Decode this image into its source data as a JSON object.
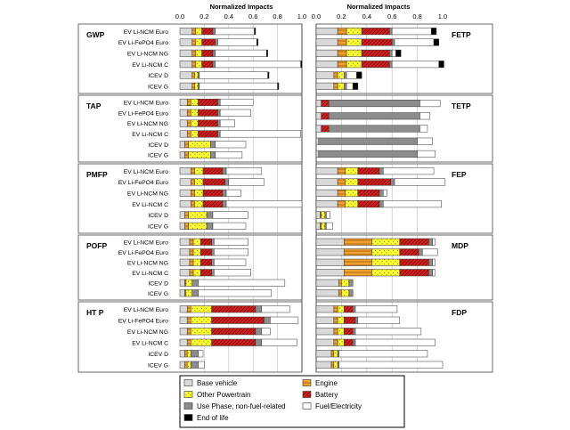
{
  "chart_data": {
    "type": "bar",
    "orientation": "horizontal",
    "stacked": true,
    "axis_title": "Normalized Impacts",
    "xlim": [
      0,
      1
    ],
    "tick_labels": [
      "0.0",
      "0.2",
      "0.4",
      "0.6",
      "0.8",
      "1.0"
    ],
    "vehicles_ev": [
      "EV Li-NCM Euro",
      "EV Li-FePO4 Euro",
      "EV Li-NCM NG",
      "EV Li-NCM C",
      "ICEV D",
      "ICEV G"
    ],
    "vehicles_short": [
      "EV Li-NCM Euro",
      "EV Li-NCM NG",
      "EV Li-NCM C",
      "ICEV D",
      "ICEV G"
    ],
    "components": [
      {
        "key": "base",
        "label": "Base vehicle",
        "color": "#d9d9d9"
      },
      {
        "key": "engine",
        "label": "Engine",
        "color": "#f0a030"
      },
      {
        "key": "other",
        "label": "Other Powertrain",
        "color": "#ffff33"
      },
      {
        "key": "battery",
        "label": "Battery",
        "color": "#d42020"
      },
      {
        "key": "use",
        "label": "Use Phase, non-fuel-related",
        "color": "#8c8c8c"
      },
      {
        "key": "fuel",
        "label": "Fuel/Electricity",
        "color": "#ffffff"
      },
      {
        "key": "eol",
        "label": "End of life",
        "color": "#000000"
      }
    ],
    "panels": [
      {
        "name": "GWP",
        "side": "left",
        "rows": [
          {
            "vehicle": "EV Li-NCM Euro",
            "values": [
              0.1,
              0.03,
              0.05,
              0.09,
              0.02,
              0.32,
              0.01
            ]
          },
          {
            "vehicle": "EV Li-FePO4 Euro",
            "values": [
              0.1,
              0.03,
              0.05,
              0.11,
              0.02,
              0.32,
              0.01
            ]
          },
          {
            "vehicle": "EV Li-NCM NG",
            "values": [
              0.1,
              0.03,
              0.05,
              0.09,
              0.02,
              0.42,
              0.01
            ]
          },
          {
            "vehicle": "EV Li-NCM C",
            "values": [
              0.1,
              0.03,
              0.05,
              0.09,
              0.02,
              0.7,
              0.01
            ]
          },
          {
            "vehicle": "ICEV D",
            "values": [
              0.1,
              0.02,
              0.03,
              0.0,
              0.01,
              0.56,
              0.01
            ]
          },
          {
            "vehicle": "ICEV G",
            "values": [
              0.1,
              0.02,
              0.03,
              0.0,
              0.01,
              0.64,
              0.01
            ]
          }
        ]
      },
      {
        "name": "FETP",
        "side": "right",
        "rows": [
          {
            "vehicle": "EV Li-NCM Euro",
            "values": [
              0.17,
              0.07,
              0.12,
              0.22,
              0.02,
              0.31,
              0.04
            ]
          },
          {
            "vehicle": "EV Li-FePO4 Euro",
            "values": [
              0.17,
              0.07,
              0.12,
              0.24,
              0.02,
              0.31,
              0.04
            ]
          },
          {
            "vehicle": "EV Li-NCM NG",
            "values": [
              0.17,
              0.07,
              0.12,
              0.22,
              0.02,
              0.03,
              0.04
            ]
          },
          {
            "vehicle": "EV Li-NCM C",
            "values": [
              0.17,
              0.07,
              0.12,
              0.22,
              0.02,
              0.37,
              0.04
            ]
          },
          {
            "vehicle": "ICEV D",
            "values": [
              0.14,
              0.03,
              0.05,
              0.0,
              0.02,
              0.08,
              0.04
            ]
          },
          {
            "vehicle": "ICEV G",
            "values": [
              0.14,
              0.03,
              0.05,
              0.0,
              0.02,
              0.05,
              0.04
            ]
          }
        ]
      },
      {
        "name": "TAP",
        "side": "left",
        "rows": [
          {
            "vehicle": "EV Li-NCM Euro",
            "values": [
              0.06,
              0.03,
              0.06,
              0.16,
              0.02,
              0.27,
              0.0
            ]
          },
          {
            "vehicle": "EV Li-FePO4 Euro",
            "values": [
              0.06,
              0.03,
              0.06,
              0.16,
              0.02,
              0.25,
              0.0
            ]
          },
          {
            "vehicle": "EV Li-NCM NG",
            "values": [
              0.06,
              0.03,
              0.06,
              0.16,
              0.02,
              0.12,
              0.0
            ]
          },
          {
            "vehicle": "EV Li-NCM C",
            "values": [
              0.06,
              0.03,
              0.06,
              0.16,
              0.02,
              0.66,
              0.0
            ]
          },
          {
            "vehicle": "ICEV D",
            "values": [
              0.04,
              0.03,
              0.18,
              0.0,
              0.04,
              0.25,
              0.0
            ]
          },
          {
            "vehicle": "ICEV G",
            "values": [
              0.04,
              0.03,
              0.18,
              0.0,
              0.04,
              0.22,
              0.0
            ]
          }
        ]
      },
      {
        "name": "TETP",
        "side": "right",
        "rows": [
          {
            "vehicle": "EV Li-NCM Euro",
            "values": [
              0.04,
              0.0,
              0.0,
              0.06,
              0.72,
              0.16,
              0.0
            ]
          },
          {
            "vehicle": "EV Li-NCM NG",
            "values": [
              0.04,
              0.0,
              0.0,
              0.06,
              0.72,
              0.08,
              0.0
            ]
          },
          {
            "vehicle": "EV Li-NCM C",
            "values": [
              0.04,
              0.0,
              0.0,
              0.06,
              0.72,
              0.06,
              0.0
            ]
          },
          {
            "vehicle": "ICEV D",
            "values": [
              0.02,
              0.0,
              0.0,
              0.0,
              0.78,
              0.12,
              0.0
            ]
          },
          {
            "vehicle": "ICEV G",
            "values": [
              0.02,
              0.0,
              0.0,
              0.0,
              0.78,
              0.14,
              0.0
            ]
          }
        ]
      },
      {
        "name": "PMFP",
        "side": "left",
        "rows": [
          {
            "vehicle": "EV Li-NCM Euro",
            "values": [
              0.09,
              0.03,
              0.07,
              0.16,
              0.03,
              0.29,
              0.0
            ]
          },
          {
            "vehicle": "EV Li-FePO4 Euro",
            "values": [
              0.09,
              0.03,
              0.07,
              0.18,
              0.03,
              0.29,
              0.0
            ]
          },
          {
            "vehicle": "EV Li-NCM NG",
            "values": [
              0.09,
              0.03,
              0.07,
              0.16,
              0.03,
              0.12,
              0.0
            ]
          },
          {
            "vehicle": "EV Li-NCM C",
            "values": [
              0.09,
              0.03,
              0.07,
              0.16,
              0.03,
              0.62,
              0.0
            ]
          },
          {
            "vehicle": "ICEV D",
            "values": [
              0.04,
              0.03,
              0.15,
              0.0,
              0.05,
              0.29,
              0.0
            ]
          },
          {
            "vehicle": "ICEV G",
            "values": [
              0.04,
              0.03,
              0.15,
              0.0,
              0.05,
              0.27,
              0.0
            ]
          }
        ]
      },
      {
        "name": "FEP",
        "side": "right",
        "rows": [
          {
            "vehicle": "EV Li-NCM Euro",
            "values": [
              0.17,
              0.06,
              0.1,
              0.17,
              0.03,
              0.4,
              0.0
            ]
          },
          {
            "vehicle": "EV Li-FePO4 Euro",
            "values": [
              0.17,
              0.06,
              0.1,
              0.26,
              0.03,
              0.4,
              0.0
            ]
          },
          {
            "vehicle": "EV Li-NCM NG",
            "values": [
              0.17,
              0.06,
              0.1,
              0.17,
              0.03,
              0.03,
              0.0
            ]
          },
          {
            "vehicle": "EV Li-NCM C",
            "values": [
              0.17,
              0.06,
              0.1,
              0.17,
              0.03,
              0.46,
              0.0
            ]
          },
          {
            "vehicle": "ICEV D",
            "values": [
              0.03,
              0.01,
              0.03,
              0.0,
              0.01,
              0.03,
              0.0
            ]
          },
          {
            "vehicle": "ICEV G",
            "values": [
              0.03,
              0.01,
              0.03,
              0.0,
              0.01,
              0.05,
              0.0
            ]
          }
        ]
      },
      {
        "name": "POFP",
        "side": "left",
        "rows": [
          {
            "vehicle": "EV Li-NCM Euro",
            "values": [
              0.08,
              0.03,
              0.06,
              0.09,
              0.02,
              0.28,
              0.0
            ]
          },
          {
            "vehicle": "EV Li-FePO4 Euro",
            "values": [
              0.08,
              0.03,
              0.06,
              0.09,
              0.02,
              0.28,
              0.0
            ]
          },
          {
            "vehicle": "EV Li-NCM NG",
            "values": [
              0.08,
              0.03,
              0.06,
              0.09,
              0.02,
              0.26,
              0.0
            ]
          },
          {
            "vehicle": "EV Li-NCM C",
            "values": [
              0.08,
              0.03,
              0.06,
              0.09,
              0.02,
              0.3,
              0.0
            ]
          },
          {
            "vehicle": "ICEV D",
            "values": [
              0.04,
              0.01,
              0.05,
              0.0,
              0.05,
              0.71,
              0.0
            ]
          },
          {
            "vehicle": "ICEV G",
            "values": [
              0.04,
              0.01,
              0.05,
              0.0,
              0.05,
              0.6,
              0.0
            ]
          }
        ]
      },
      {
        "name": "MDP",
        "side": "right",
        "rows": [
          {
            "vehicle": "EV Li-NCM Euro",
            "values": [
              0.22,
              0.22,
              0.22,
              0.23,
              0.03,
              0.02,
              0.0
            ]
          },
          {
            "vehicle": "EV Li-FePO4 Euro",
            "values": [
              0.22,
              0.22,
              0.22,
              0.15,
              0.03,
              0.12,
              0.0
            ]
          },
          {
            "vehicle": "EV Li-NCM NG",
            "values": [
              0.22,
              0.22,
              0.22,
              0.23,
              0.03,
              0.02,
              0.0
            ]
          },
          {
            "vehicle": "EV Li-NCM C",
            "values": [
              0.22,
              0.22,
              0.22,
              0.23,
              0.03,
              0.02,
              0.0
            ]
          },
          {
            "vehicle": "ICEV D",
            "values": [
              0.18,
              0.02,
              0.06,
              0.0,
              0.03,
              0.0,
              0.0
            ]
          },
          {
            "vehicle": "ICEV G",
            "values": [
              0.18,
              0.02,
              0.06,
              0.0,
              0.03,
              0.0,
              0.0
            ]
          }
        ]
      },
      {
        "name": "HT P",
        "side": "left",
        "rows": [
          {
            "vehicle": "EV Li-NCM Euro",
            "values": [
              0.06,
              0.03,
              0.17,
              0.36,
              0.05,
              0.23,
              0.0
            ]
          },
          {
            "vehicle": "EV Li-FePO4 Euro",
            "values": [
              0.06,
              0.03,
              0.17,
              0.43,
              0.05,
              0.23,
              0.0
            ]
          },
          {
            "vehicle": "EV Li-NCM NG",
            "values": [
              0.06,
              0.03,
              0.17,
              0.36,
              0.05,
              0.07,
              0.0
            ]
          },
          {
            "vehicle": "EV Li-NCM C",
            "values": [
              0.06,
              0.03,
              0.17,
              0.36,
              0.05,
              0.29,
              0.0
            ]
          },
          {
            "vehicle": "ICEV D",
            "values": [
              0.04,
              0.02,
              0.03,
              0.0,
              0.06,
              0.04,
              0.0
            ]
          },
          {
            "vehicle": "ICEV G",
            "values": [
              0.04,
              0.02,
              0.03,
              0.0,
              0.06,
              0.05,
              0.0
            ]
          }
        ]
      },
      {
        "name": "FDP",
        "side": "right",
        "rows": [
          {
            "vehicle": "EV Li-NCM Euro",
            "values": [
              0.14,
              0.03,
              0.05,
              0.07,
              0.02,
              0.33,
              0.0
            ]
          },
          {
            "vehicle": "EV Li-FePO4 Euro",
            "values": [
              0.14,
              0.03,
              0.05,
              0.09,
              0.02,
              0.33,
              0.0
            ]
          },
          {
            "vehicle": "EV Li-NCM NG",
            "values": [
              0.14,
              0.03,
              0.05,
              0.07,
              0.02,
              0.52,
              0.0
            ]
          },
          {
            "vehicle": "EV Li-NCM C",
            "values": [
              0.14,
              0.03,
              0.05,
              0.07,
              0.02,
              0.63,
              0.0
            ]
          },
          {
            "vehicle": "ICEV D",
            "values": [
              0.12,
              0.02,
              0.03,
              0.0,
              0.01,
              0.7,
              0.0
            ]
          },
          {
            "vehicle": "ICEV G",
            "values": [
              0.12,
              0.02,
              0.03,
              0.0,
              0.01,
              0.82,
              0.0
            ]
          }
        ]
      }
    ]
  }
}
